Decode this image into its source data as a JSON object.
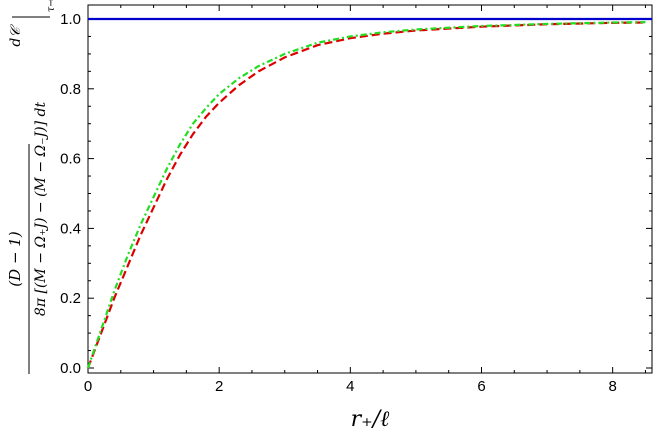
{
  "chart_data": {
    "type": "line",
    "title": "",
    "xlabel": "r₊/ℓ",
    "ylabel_parts": {
      "prefix": "(D − 1)",
      "numerator": "d𝒞",
      "denominator": "8π [(M − Ω₊J) − (M − Ω₋J)] dt",
      "subscript": "τ→∞"
    },
    "xlim": [
      0,
      8.6
    ],
    "ylim": [
      0,
      1.05
    ],
    "xticks": [
      0,
      2,
      4,
      6,
      8
    ],
    "xtick_labels": [
      "0",
      "2",
      "4",
      "6",
      "8"
    ],
    "yticks": [
      0.0,
      0.2,
      0.4,
      0.6,
      0.8,
      1.0
    ],
    "ytick_labels": [
      "0.0",
      "0.2",
      "0.4",
      "0.6",
      "0.8",
      "1.0"
    ],
    "grid": false,
    "series": [
      {
        "color": "#0000cc",
        "style": "solid",
        "x": [
          0,
          8.6
        ],
        "y": [
          1.0,
          1.0
        ]
      },
      {
        "color": "#dd0000",
        "style": "dashed",
        "x": [
          0,
          0.2,
          0.4,
          0.6,
          0.8,
          1.0,
          1.2,
          1.4,
          1.6,
          1.8,
          2.0,
          2.3,
          2.6,
          3.0,
          3.5,
          4.0,
          4.5,
          5.0,
          6.0,
          7.0,
          8.0,
          8.5
        ],
        "y": [
          0.0,
          0.1,
          0.2,
          0.29,
          0.38,
          0.46,
          0.54,
          0.61,
          0.67,
          0.72,
          0.76,
          0.81,
          0.85,
          0.89,
          0.925,
          0.945,
          0.958,
          0.967,
          0.978,
          0.985,
          0.989,
          0.99
        ]
      },
      {
        "color": "#22dd22",
        "style": "dashdot",
        "x": [
          0,
          0.2,
          0.4,
          0.6,
          0.8,
          1.0,
          1.2,
          1.4,
          1.6,
          1.8,
          2.0,
          2.3,
          2.6,
          3.0,
          3.5,
          4.0,
          4.5,
          5.0,
          6.0,
          7.0,
          8.0,
          8.5
        ],
        "y": [
          0.0,
          0.11,
          0.22,
          0.32,
          0.41,
          0.49,
          0.57,
          0.64,
          0.7,
          0.745,
          0.785,
          0.83,
          0.865,
          0.9,
          0.932,
          0.95,
          0.962,
          0.97,
          0.98,
          0.986,
          0.99,
          0.991
        ]
      }
    ]
  }
}
